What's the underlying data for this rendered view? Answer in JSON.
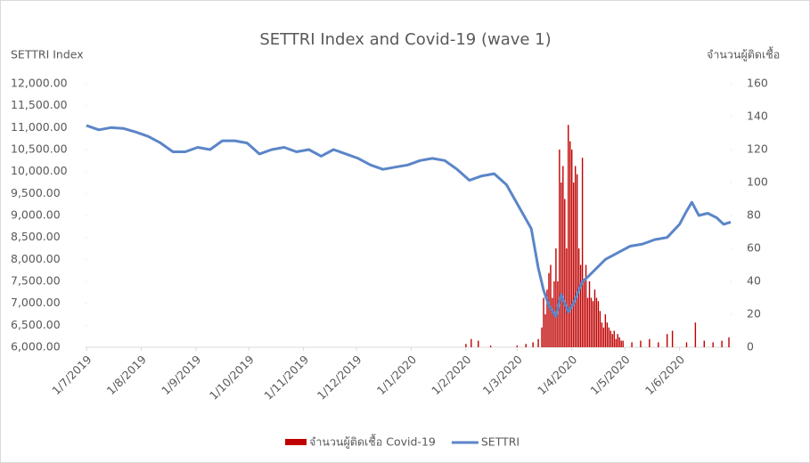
{
  "chart_data": {
    "type": "combo",
    "title": "SETTRI Index and Covid-19 (wave 1)",
    "ylabel": "SETTRI Index",
    "y2label": "จำนวนผู้ติดเชื้อ",
    "xlim": [
      "1/7/2019",
      "30/6/2020"
    ],
    "xticks": [
      "1/7/2019",
      "1/8/2019",
      "1/9/2019",
      "1/10/2019",
      "1/11/2019",
      "1/12/2019",
      "1/1/2020",
      "1/2/2020",
      "1/3/2020",
      "1/4/2020",
      "1/5/2020",
      "1/6/2020"
    ],
    "ylim": [
      6000,
      12000
    ],
    "yticks": [
      {
        "value": 6000,
        "label": "6,000.00"
      },
      {
        "value": 6500,
        "label": "6,500.00"
      },
      {
        "value": 7000,
        "label": "7,000.00"
      },
      {
        "value": 7500,
        "label": "7,500.00"
      },
      {
        "value": 8000,
        "label": "8,000.00"
      },
      {
        "value": 8500,
        "label": "8,500.00"
      },
      {
        "value": 9000,
        "label": "9,000.00"
      },
      {
        "value": 9500,
        "label": "9,500.00"
      },
      {
        "value": 10000,
        "label": "10,000.00"
      },
      {
        "value": 10500,
        "label": "10,500.00"
      },
      {
        "value": 11000,
        "label": "11,000.00"
      },
      {
        "value": 11500,
        "label": "11,500.00"
      },
      {
        "value": 12000,
        "label": "12,000.00"
      }
    ],
    "y2lim": [
      0,
      160
    ],
    "y2ticks": [
      0,
      20,
      40,
      60,
      80,
      100,
      120,
      140,
      160
    ],
    "series": [
      {
        "name": "จำนวนผู้ติดเชื้อ Covid-19",
        "type": "bar",
        "axis": "y2",
        "color": "#c00000",
        "x": [
          "1/2/2020",
          "4/2/2020",
          "8/2/2020",
          "15/2/2020",
          "1/3/2020",
          "6/3/2020",
          "10/3/2020",
          "13/3/2020",
          "15/3/2020",
          "16/3/2020",
          "17/3/2020",
          "18/3/2020",
          "19/3/2020",
          "20/3/2020",
          "21/3/2020",
          "22/3/2020",
          "23/3/2020",
          "24/3/2020",
          "25/3/2020",
          "26/3/2020",
          "27/3/2020",
          "28/3/2020",
          "29/3/2020",
          "30/3/2020",
          "31/3/2020",
          "1/4/2020",
          "2/4/2020",
          "3/4/2020",
          "4/4/2020",
          "5/4/2020",
          "6/4/2020",
          "7/4/2020",
          "8/4/2020",
          "9/4/2020",
          "10/4/2020",
          "11/4/2020",
          "12/4/2020",
          "13/4/2020",
          "14/4/2020",
          "15/4/2020",
          "16/4/2020",
          "17/4/2020",
          "18/4/2020",
          "19/4/2020",
          "20/4/2020",
          "21/4/2020",
          "22/4/2020",
          "23/4/2020",
          "24/4/2020",
          "25/4/2020",
          "26/4/2020",
          "27/4/2020",
          "28/4/2020",
          "29/4/2020",
          "30/4/2020",
          "5/5/2020",
          "10/5/2020",
          "15/5/2020",
          "20/5/2020",
          "25/5/2020",
          "28/5/2020",
          "5/6/2020",
          "10/6/2020",
          "15/6/2020",
          "20/6/2020",
          "25/6/2020",
          "29/6/2020"
        ],
        "values": [
          2,
          5,
          4,
          1,
          1,
          2,
          3,
          5,
          12,
          30,
          20,
          35,
          45,
          50,
          30,
          40,
          60,
          40,
          120,
          100,
          110,
          90,
          60,
          135,
          125,
          120,
          100,
          110,
          105,
          60,
          50,
          115,
          40,
          50,
          30,
          40,
          30,
          28,
          35,
          30,
          28,
          22,
          15,
          12,
          20,
          15,
          12,
          10,
          8,
          10,
          5,
          8,
          6,
          4,
          4,
          3,
          4,
          5,
          3,
          8,
          10,
          3,
          15,
          4,
          3,
          4,
          6
        ]
      },
      {
        "name": "SETTRI",
        "type": "line",
        "axis": "y",
        "color": "#5b85c8",
        "x": [
          "1/7/2019",
          "8/7/2019",
          "15/7/2019",
          "22/7/2019",
          "29/7/2019",
          "5/8/2019",
          "12/8/2019",
          "19/8/2019",
          "26/8/2019",
          "2/9/2019",
          "9/9/2019",
          "16/9/2019",
          "23/9/2019",
          "30/9/2019",
          "7/10/2019",
          "14/10/2019",
          "21/10/2019",
          "28/10/2019",
          "4/11/2019",
          "11/11/2019",
          "18/11/2019",
          "25/11/2019",
          "2/12/2019",
          "9/12/2019",
          "16/12/2019",
          "23/12/2019",
          "30/12/2019",
          "6/1/2020",
          "13/1/2020",
          "20/1/2020",
          "27/1/2020",
          "3/2/2020",
          "10/2/2020",
          "17/2/2020",
          "24/2/2020",
          "2/3/2020",
          "9/3/2020",
          "13/3/2020",
          "16/3/2020",
          "19/3/2020",
          "23/3/2020",
          "26/3/2020",
          "30/3/2020",
          "2/4/2020",
          "7/4/2020",
          "10/4/2020",
          "15/4/2020",
          "20/4/2020",
          "27/4/2020",
          "4/5/2020",
          "11/5/2020",
          "18/5/2020",
          "25/5/2020",
          "1/6/2020",
          "5/6/2020",
          "8/6/2020",
          "12/6/2020",
          "17/6/2020",
          "22/6/2020",
          "26/6/2020",
          "30/6/2020"
        ],
        "values": [
          11050,
          10950,
          11000,
          10980,
          10900,
          10800,
          10650,
          10450,
          10450,
          10550,
          10500,
          10700,
          10700,
          10650,
          10400,
          10500,
          10550,
          10450,
          10500,
          10350,
          10500,
          10400,
          10300,
          10150,
          10050,
          10100,
          10150,
          10250,
          10300,
          10250,
          10050,
          9800,
          9900,
          9950,
          9700,
          9200,
          8700,
          7800,
          7300,
          6950,
          6700,
          7200,
          6800,
          7000,
          7500,
          7600,
          7800,
          8000,
          8150,
          8300,
          8350,
          8450,
          8500,
          8800,
          9100,
          9300,
          9000,
          9050,
          8950,
          8800,
          8850
        ]
      }
    ]
  }
}
